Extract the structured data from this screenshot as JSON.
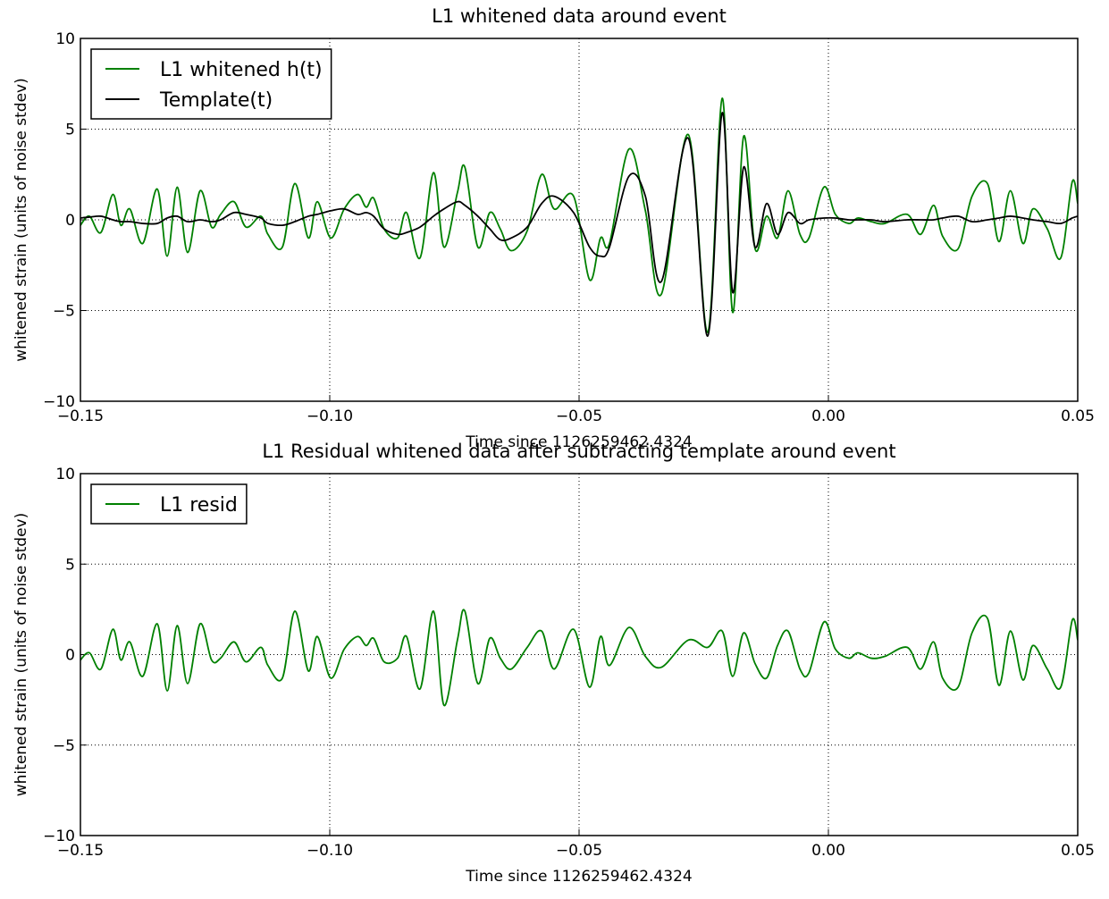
{
  "chart_data": [
    {
      "type": "line",
      "title": "L1 whitened data around event",
      "xlabel": "Time since 1126259462.4324",
      "ylabel": "whitened strain (units of noise stdev)",
      "x": [
        -0.15,
        -0.1482,
        -0.1459,
        -0.1435,
        -0.1419,
        -0.1401,
        -0.1375,
        -0.1346,
        -0.1326,
        -0.1306,
        -0.1285,
        -0.126,
        -0.1237,
        -0.1219,
        -0.1192,
        -0.1168,
        -0.1138,
        -0.1124,
        -0.1095,
        -0.107,
        -0.1043,
        -0.1025,
        -0.0998,
        -0.0971,
        -0.0944,
        -0.0927,
        -0.0912,
        -0.0891,
        -0.0864,
        -0.0846,
        -0.0819,
        -0.0792,
        -0.0771,
        -0.0744,
        -0.0729,
        -0.0703,
        -0.0679,
        -0.0658,
        -0.0636,
        -0.0604,
        -0.0575,
        -0.055,
        -0.0511,
        -0.0479,
        -0.0457,
        -0.0439,
        -0.04,
        -0.0367,
        -0.0335,
        -0.0281,
        -0.0242,
        -0.0213,
        -0.0192,
        -0.017,
        -0.0147,
        -0.0124,
        -0.0102,
        -0.0081,
        -0.0057,
        -0.0039,
        -0.0009,
        0.0014,
        0.0041,
        0.0059,
        0.0086,
        0.0113,
        0.0158,
        0.0185,
        0.0211,
        0.0229,
        0.026,
        0.0288,
        0.0319,
        0.0342,
        0.0365,
        0.039,
        0.041,
        0.0439,
        0.0466,
        0.0489,
        0.05
      ],
      "series": [
        {
          "name": "L1 whitened h(t)",
          "color": "#008000",
          "values": [
            -0.3,
            0.2,
            -0.7,
            1.4,
            -0.3,
            0.6,
            -1.3,
            1.7,
            -2.0,
            1.8,
            -1.8,
            1.6,
            -0.4,
            0.3,
            1.0,
            -0.4,
            0.2,
            -0.8,
            -1.5,
            2.0,
            -1.0,
            1.0,
            -1.0,
            0.6,
            1.4,
            0.7,
            1.2,
            -0.5,
            -1.0,
            0.4,
            -2.1,
            2.6,
            -1.5,
            1.5,
            2.9,
            -1.5,
            0.4,
            -0.5,
            -1.7,
            -0.6,
            2.5,
            0.6,
            1.3,
            -3.3,
            -1.0,
            -1.3,
            3.9,
            0.5,
            -4.1,
            4.7,
            -6.2,
            6.7,
            -5.1,
            4.6,
            -1.6,
            0.2,
            -1.0,
            1.6,
            -0.8,
            -1.0,
            1.8,
            0.3,
            -0.2,
            0.1,
            -0.1,
            -0.2,
            0.3,
            -0.8,
            0.8,
            -0.9,
            -1.6,
            1.3,
            2.0,
            -1.2,
            1.6,
            -1.3,
            0.6,
            -0.5,
            -2.1,
            2.1,
            0.9
          ]
        },
        {
          "name": "Template(t)",
          "color": "#000000",
          "values": [
            0.1,
            0.15,
            0.2,
            0,
            -0.1,
            -0.1,
            -0.2,
            -0.2,
            0.1,
            0.2,
            -0.1,
            0,
            -0.1,
            0,
            0.4,
            0.3,
            0.1,
            -0.2,
            -0.3,
            -0.1,
            0.2,
            0.3,
            0.5,
            0.6,
            0.3,
            0.4,
            0.2,
            -0.5,
            -0.8,
            -0.7,
            -0.4,
            0.2,
            0.6,
            1.0,
            0.8,
            0.2,
            -0.5,
            -1.1,
            -1.0,
            -0.4,
            0.9,
            1.3,
            0.4,
            -1.5,
            -2.0,
            -1.5,
            2.4,
            1.3,
            -3.4,
            4.5,
            -6.4,
            5.9,
            -4.0,
            2.9,
            -1.5,
            0.9,
            -0.8,
            0.4,
            -0.2,
            0,
            0.1,
            0.1,
            0,
            0,
            0,
            -0.1,
            0,
            0,
            0,
            0.1,
            0.2,
            -0.1,
            0,
            0.1,
            0.2,
            0.1,
            0,
            -0.1,
            -0.2,
            0.1,
            0.2
          ]
        }
      ],
      "xlim": [
        -0.15,
        0.05
      ],
      "ylim": [
        -10,
        10
      ],
      "xticks": [
        {
          "value": -0.15,
          "label": "−0.15"
        },
        {
          "value": -0.1,
          "label": "−0.10"
        },
        {
          "value": -0.05,
          "label": "−0.05"
        },
        {
          "value": 0,
          "label": "0.00"
        },
        {
          "value": 0.05,
          "label": "0.05"
        }
      ],
      "yticks": [
        {
          "value": -10,
          "label": "−10"
        },
        {
          "value": -5,
          "label": "−5"
        },
        0,
        5,
        10
      ],
      "grid": true,
      "legend": "upper left"
    },
    {
      "type": "line",
      "title": "L1 Residual whitened data after subtracting template around event",
      "xlabel": "Time since 1126259462.4324",
      "ylabel": "whitened strain (units of noise stdev)",
      "x": [
        -0.15,
        -0.1482,
        -0.1459,
        -0.1435,
        -0.1419,
        -0.1401,
        -0.1375,
        -0.1346,
        -0.1326,
        -0.1306,
        -0.1285,
        -0.126,
        -0.1237,
        -0.1219,
        -0.1192,
        -0.1168,
        -0.1138,
        -0.1124,
        -0.1095,
        -0.107,
        -0.1043,
        -0.1025,
        -0.0998,
        -0.0971,
        -0.0944,
        -0.0927,
        -0.0912,
        -0.0891,
        -0.0864,
        -0.0846,
        -0.0819,
        -0.0792,
        -0.0771,
        -0.0744,
        -0.0729,
        -0.0703,
        -0.0679,
        -0.0658,
        -0.0636,
        -0.0604,
        -0.0575,
        -0.055,
        -0.0511,
        -0.0479,
        -0.0457,
        -0.0439,
        -0.04,
        -0.0367,
        -0.0335,
        -0.0281,
        -0.0242,
        -0.0213,
        -0.0192,
        -0.017,
        -0.0147,
        -0.0124,
        -0.0102,
        -0.0081,
        -0.0057,
        -0.0039,
        -0.0009,
        0.0014,
        0.0041,
        0.0059,
        0.0086,
        0.0113,
        0.0158,
        0.0185,
        0.0211,
        0.0229,
        0.026,
        0.0288,
        0.0319,
        0.0342,
        0.0365,
        0.039,
        0.041,
        0.0439,
        0.0466,
        0.0489,
        0.05
      ],
      "series": [
        {
          "name": "L1 resid",
          "color": "#008000",
          "values": [
            -0.3,
            0.1,
            -0.8,
            1.4,
            -0.3,
            0.7,
            -1.2,
            1.7,
            -2.0,
            1.6,
            -1.6,
            1.7,
            -0.3,
            -0.2,
            0.7,
            -0.4,
            0.4,
            -0.6,
            -1.3,
            2.4,
            -0.9,
            1.0,
            -1.3,
            0.3,
            1.0,
            0.5,
            0.9,
            -0.4,
            -0.2,
            1.0,
            -1.9,
            2.4,
            -2.8,
            0.8,
            2.4,
            -1.6,
            0.9,
            -0.2,
            -0.8,
            0.4,
            1.3,
            -0.8,
            1.4,
            -1.8,
            1.0,
            -0.6,
            1.5,
            -0.1,
            -0.7,
            0.8,
            0.4,
            1.3,
            -1.2,
            1.2,
            -0.5,
            -1.3,
            0.5,
            1.3,
            -0.8,
            -1.0,
            1.8,
            0.3,
            -0.2,
            0.1,
            -0.2,
            -0.1,
            0.4,
            -0.8,
            0.7,
            -1.3,
            -1.8,
            1.2,
            2.0,
            -1.7,
            1.3,
            -1.4,
            0.5,
            -0.8,
            -1.8,
            1.9,
            0.8
          ]
        }
      ],
      "xlim": [
        -0.15,
        0.05
      ],
      "ylim": [
        -10,
        10
      ],
      "xticks": [
        {
          "value": -0.15,
          "label": "−0.15"
        },
        {
          "value": -0.1,
          "label": "−0.10"
        },
        {
          "value": -0.05,
          "label": "−0.05"
        },
        {
          "value": 0,
          "label": "0.00"
        },
        {
          "value": 0.05,
          "label": "0.05"
        }
      ],
      "yticks": [
        {
          "value": -10,
          "label": "−10"
        },
        {
          "value": -5,
          "label": "−5"
        },
        0,
        5,
        10
      ],
      "grid": true,
      "legend": "upper left"
    }
  ]
}
